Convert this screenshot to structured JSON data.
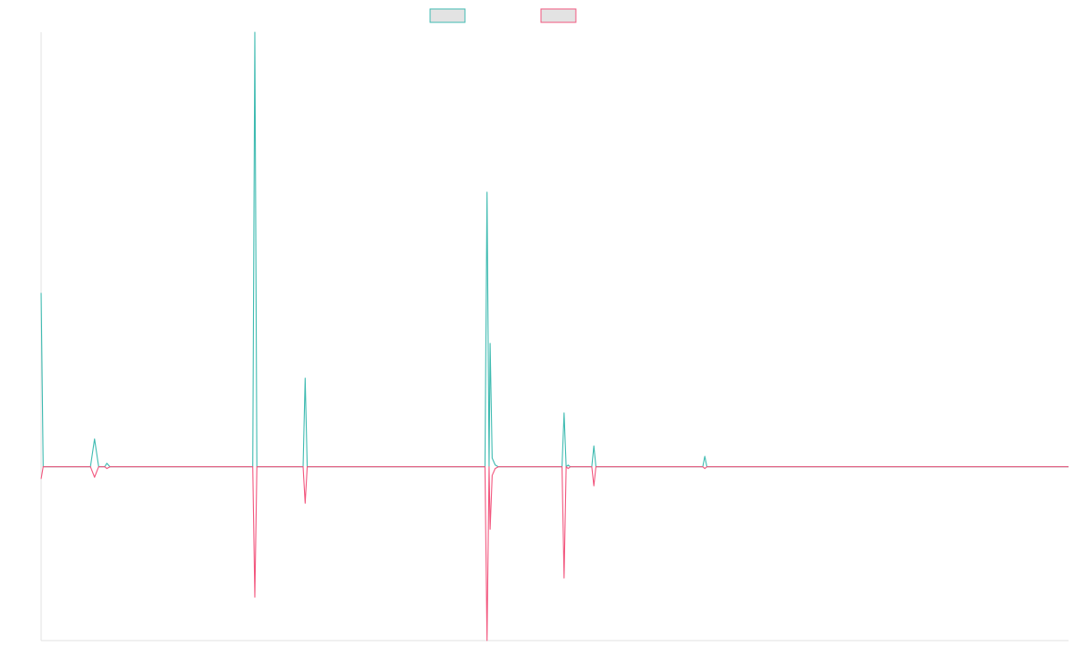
{
  "chart_data": {
    "type": "line",
    "title": "",
    "xlabel": "",
    "ylabel": "",
    "grid": false,
    "legend_position": "top-center",
    "xlim": [
      0,
      100
    ],
    "ylim": [
      -1,
      2.5
    ],
    "x": [
      0,
      0.2,
      1,
      2,
      4.8,
      5.2,
      5.6,
      6.2,
      6.4,
      6.7,
      20.6,
      20.8,
      21.0,
      25.5,
      25.7,
      25.9,
      43.2,
      43.4,
      43.6,
      43.7,
      43.9,
      44.2,
      44.5,
      45,
      50.7,
      50.9,
      51.1,
      51.3,
      51.5,
      51.7,
      53.6,
      53.8,
      54.0,
      64.4,
      64.6,
      64.8,
      100
    ],
    "series": [
      {
        "name": "",
        "color": "#3cbab0",
        "values": [
          1.0,
          0,
          0,
          0,
          0,
          0.16,
          0,
          0,
          0.02,
          0,
          0,
          2.5,
          0,
          0,
          0.51,
          0,
          0,
          1.58,
          0,
          0.71,
          0.05,
          0.01,
          0,
          0,
          0,
          0.31,
          0,
          0.01,
          0,
          0,
          0,
          0.12,
          0,
          0,
          0.06,
          0,
          0
        ]
      },
      {
        "name": "",
        "color": "#f2547c",
        "values": [
          -0.07,
          0,
          0,
          0,
          0,
          -0.06,
          0,
          0,
          -0.01,
          0,
          0,
          -0.75,
          0,
          0,
          -0.21,
          0,
          0,
          -1.0,
          0,
          -0.36,
          -0.05,
          -0.01,
          0,
          0,
          0,
          -0.64,
          0,
          -0.01,
          0,
          0,
          0,
          -0.11,
          0,
          0,
          -0.01,
          0,
          0
        ]
      }
    ]
  }
}
